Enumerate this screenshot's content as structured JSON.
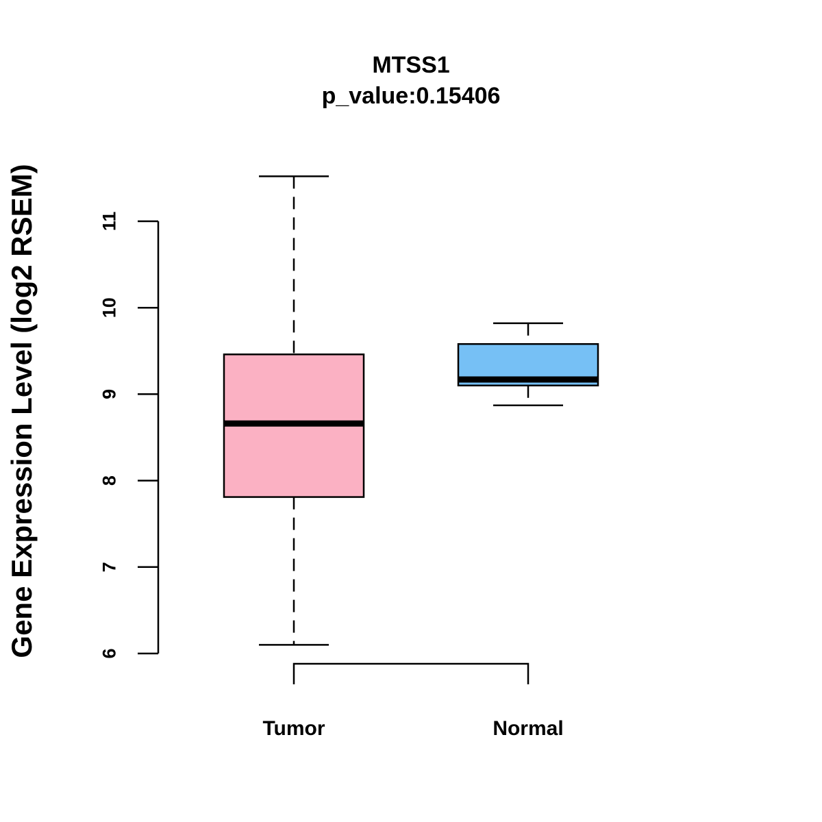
{
  "chart_data": {
    "type": "boxplot",
    "title": "MTSS1",
    "subtitle": "p_value:0.15406",
    "xlabel": "",
    "ylabel": "Gene Expression Level (log2 RSEM)",
    "ylim": [
      6,
      11
    ],
    "yticks": [
      6,
      7,
      8,
      9,
      10,
      11
    ],
    "grid": false,
    "legend": "none",
    "categories": [
      "Tumor",
      "Normal"
    ],
    "series": [
      {
        "name": "Tumor",
        "whisker_low": 6.1,
        "q1": 7.81,
        "median": 8.66,
        "q3": 9.46,
        "whisker_high": 11.52,
        "color": "#FBB1C3"
      },
      {
        "name": "Normal",
        "whisker_low": 8.87,
        "q1": 9.1,
        "median": 9.17,
        "q3": 9.58,
        "whisker_high": 9.82,
        "color": "#76C0F5"
      }
    ],
    "comparison_bracket": [
      "Tumor",
      "Normal"
    ]
  }
}
